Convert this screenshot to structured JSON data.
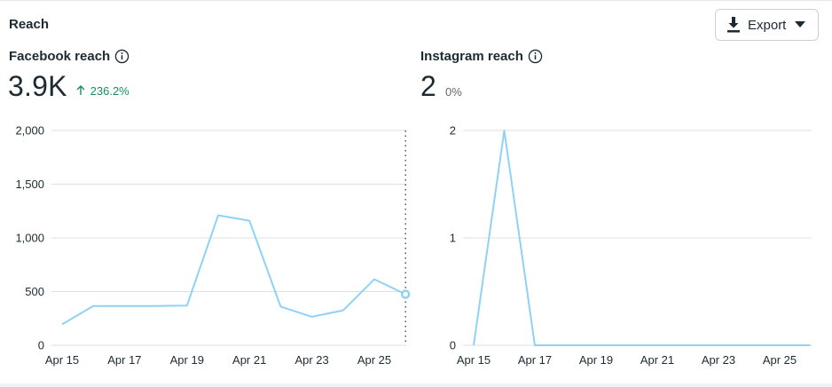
{
  "section": {
    "title": "Reach"
  },
  "export": {
    "label": "Export",
    "icon": "download-icon",
    "caret": "caret-down-icon"
  },
  "facebook": {
    "title": "Facebook reach",
    "value": "3.9K",
    "change": "236.2%",
    "change_direction": "up",
    "change_color": "#1f8a5a"
  },
  "instagram": {
    "title": "Instagram reach",
    "value": "2",
    "change": "0%"
  },
  "chart_data": [
    {
      "type": "line",
      "title": "Facebook reach",
      "x": [
        "Apr 15",
        "Apr 16",
        "Apr 17",
        "Apr 18",
        "Apr 19",
        "Apr 20",
        "Apr 21",
        "Apr 22",
        "Apr 23",
        "Apr 24",
        "Apr 25",
        "Apr 26"
      ],
      "xticks": [
        "Apr 15",
        "Apr 17",
        "Apr 19",
        "Apr 21",
        "Apr 23",
        "Apr 25"
      ],
      "yticks": [
        "0",
        "500",
        "1,000",
        "1,500",
        "2,000"
      ],
      "ylim": [
        0,
        2000
      ],
      "grid": true,
      "color": "#8fd2f5",
      "hover_date": "Apr 26",
      "values": [
        195,
        365,
        365,
        365,
        370,
        1210,
        1160,
        360,
        265,
        325,
        615,
        475
      ]
    },
    {
      "type": "line",
      "title": "Instagram reach",
      "x": [
        "Apr 15",
        "Apr 16",
        "Apr 17",
        "Apr 18",
        "Apr 19",
        "Apr 20",
        "Apr 21",
        "Apr 22",
        "Apr 23",
        "Apr 24",
        "Apr 25",
        "Apr 26"
      ],
      "xticks": [
        "Apr 15",
        "Apr 17",
        "Apr 19",
        "Apr 21",
        "Apr 23",
        "Apr 25"
      ],
      "yticks": [
        "0",
        "1",
        "2"
      ],
      "ylim": [
        0,
        2
      ],
      "grid": true,
      "color": "#8fd2f5",
      "values": [
        0,
        2,
        0,
        0,
        0,
        0,
        0,
        0,
        0,
        0,
        0,
        0
      ]
    }
  ]
}
